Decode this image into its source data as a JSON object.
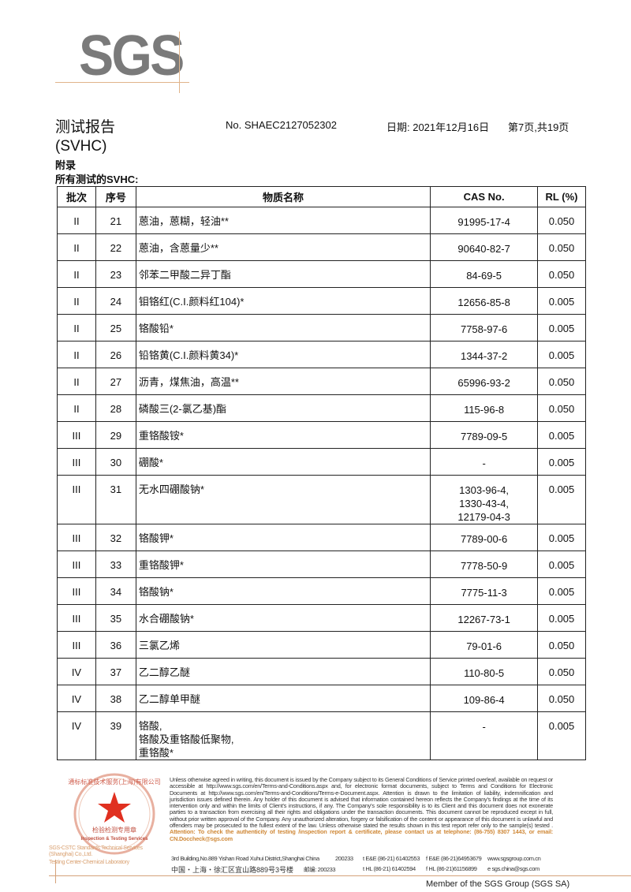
{
  "logo": {
    "text": "SGS",
    "line_color": "#e0b48a",
    "text_color": "#7a7a7a"
  },
  "header": {
    "title": "测试报告",
    "subtitle": "(SVHC)",
    "report_no": "No. SHAEC2127052302",
    "date": "日期: 2021年12月16日",
    "page": "第7页,共19页",
    "appendix": "附录",
    "all_tested": "所有测试的SVHC:"
  },
  "table": {
    "columns": [
      "批次",
      "序号",
      "物质名称",
      "CAS No.",
      "RL (%)"
    ],
    "rows": [
      {
        "batch": "II",
        "no": "21",
        "name": [
          "蒽油，蒽糊，轻油**"
        ],
        "cas": [
          "91995-17-4"
        ],
        "rl": "0.050"
      },
      {
        "batch": "II",
        "no": "22",
        "name": [
          "蒽油，含蒽量少**"
        ],
        "cas": [
          "90640-82-7"
        ],
        "rl": "0.050"
      },
      {
        "batch": "II",
        "no": "23",
        "name": [
          "邻苯二甲酸二异丁酯"
        ],
        "cas": [
          "84-69-5"
        ],
        "rl": "0.050"
      },
      {
        "batch": "II",
        "no": "24",
        "name": [
          "钼铬红(C.I.颜料红104)*"
        ],
        "cas": [
          "12656-85-8"
        ],
        "rl": "0.005"
      },
      {
        "batch": "II",
        "no": "25",
        "name": [
          "铬酸铅*"
        ],
        "cas": [
          "7758-97-6"
        ],
        "rl": "0.005"
      },
      {
        "batch": "II",
        "no": "26",
        "name": [
          "铅铬黄(C.I.颜料黄34)*"
        ],
        "cas": [
          "1344-37-2"
        ],
        "rl": "0.005"
      },
      {
        "batch": "II",
        "no": "27",
        "name": [
          "沥青，煤焦油，高温**"
        ],
        "cas": [
          "65996-93-2"
        ],
        "rl": "0.050"
      },
      {
        "batch": "II",
        "no": "28",
        "name": [
          "磷酸三(2-氯乙基)酯"
        ],
        "cas": [
          "115-96-8"
        ],
        "rl": "0.050"
      },
      {
        "batch": "III",
        "no": "29",
        "name": [
          "重铬酸铵*"
        ],
        "cas": [
          "7789-09-5"
        ],
        "rl": "0.005"
      },
      {
        "batch": "III",
        "no": "30",
        "name": [
          "硼酸*"
        ],
        "cas": [
          "-"
        ],
        "rl": "0.005"
      },
      {
        "batch": "III",
        "no": "31",
        "name": [
          "无水四硼酸钠*"
        ],
        "cas": [
          "1303-96-4,",
          "1330-43-4,",
          "12179-04-3"
        ],
        "rl": "0.005"
      },
      {
        "batch": "III",
        "no": "32",
        "name": [
          "铬酸钾*"
        ],
        "cas": [
          "7789-00-6"
        ],
        "rl": "0.005"
      },
      {
        "batch": "III",
        "no": "33",
        "name": [
          "重铬酸钾*"
        ],
        "cas": [
          "7778-50-9"
        ],
        "rl": "0.005"
      },
      {
        "batch": "III",
        "no": "34",
        "name": [
          "铬酸钠*"
        ],
        "cas": [
          "7775-11-3"
        ],
        "rl": "0.005"
      },
      {
        "batch": "III",
        "no": "35",
        "name": [
          "水合硼酸钠*"
        ],
        "cas": [
          "12267-73-1"
        ],
        "rl": "0.005"
      },
      {
        "batch": "III",
        "no": "36",
        "name": [
          "三氯乙烯"
        ],
        "cas": [
          "79-01-6"
        ],
        "rl": "0.050"
      },
      {
        "batch": "IV",
        "no": "37",
        "name": [
          "乙二醇乙醚"
        ],
        "cas": [
          "110-80-5"
        ],
        "rl": "0.050"
      },
      {
        "batch": "IV",
        "no": "38",
        "name": [
          "乙二醇单甲醚"
        ],
        "cas": [
          "109-86-4"
        ],
        "rl": "0.050"
      },
      {
        "batch": "IV",
        "no": "39",
        "name": [
          "铬酸,",
          "铬酸及重铬酸低聚物,",
          "重铬酸*"
        ],
        "cas": [
          "-"
        ],
        "rl": "0.005"
      }
    ]
  },
  "stamp": {
    "text_cn": "通标标准技术服务(上海)有限公司",
    "inner_cn": "检验检测专用章",
    "inner_en": "Inspection & Testing Services",
    "ring_en": "SGS-CSTC Standards Technical Services (Shanghai) Co.,Ltd.",
    "color": "#e03020"
  },
  "footer": {
    "company_line1": "SGS-CSTC Standards Technical Services (Shanghai) Co.,Ltd.",
    "company_line2": "Testing Center-Chemical Laboratory",
    "legal": "Unless otherwise agreed in writing, this document is issued by the Company subject to its General Conditions of Service printed overleaf, available on request or accessible at http://www.sgs.com/en/Terms-and-Conditions.aspx and, for electronic format documents, subject to Terms and Conditions for Electronic Documents at http://www.sgs.com/en/Terms-and-Conditions/Terms-e-Document.aspx. Attention is drawn to the limitation of liability, indemnification and jurisdiction issues defined therein. Any holder of this document is advised that information contained hereon reflects the Company's findings at the time of its intervention only and within the limits of Client's instructions, if any. The Company's sole responsibility is to its Client and this document does not exonerate parties to a transaction from exercising all their rights and obligations under the transaction documents. This document cannot be reproduced except in full, without prior written approval of the Company. Any unauthorized alteration, forgery or falsification of the content or appearance of this document is unlawful and offenders may be prosecuted to the fullest extent of the law. Unless otherwise stated the results shown in this test report refer only to the sample(s) tested .",
    "attention": "Attention: To check the authenticity of testing /inspection report & certificate, please contact us at telephone: (86-755) 8307 1443, or email: CN.Doccheck@sgs.com",
    "address_en": "3rd Building,No.889 Yishan Road Xuhui District,Shanghai China",
    "postcode_en": "200233",
    "tel_ee": "t E&E (86-21) 61402553",
    "fax_ee": "f E&E (86-21)64953679",
    "web": "www.sgsgroup.com.cn",
    "address_cn": "中国・上海・徐汇区宜山路889号3号楼",
    "postcode_cn": "邮编: 200233",
    "tel_hl": "t HL (86-21) 61402594",
    "fax_hl": "f HL (86-21)61156899",
    "email": "e sgs.china@sgs.com",
    "member": "Member of the SGS Group (SGS SA)",
    "accent_color": "#d08a3a"
  }
}
